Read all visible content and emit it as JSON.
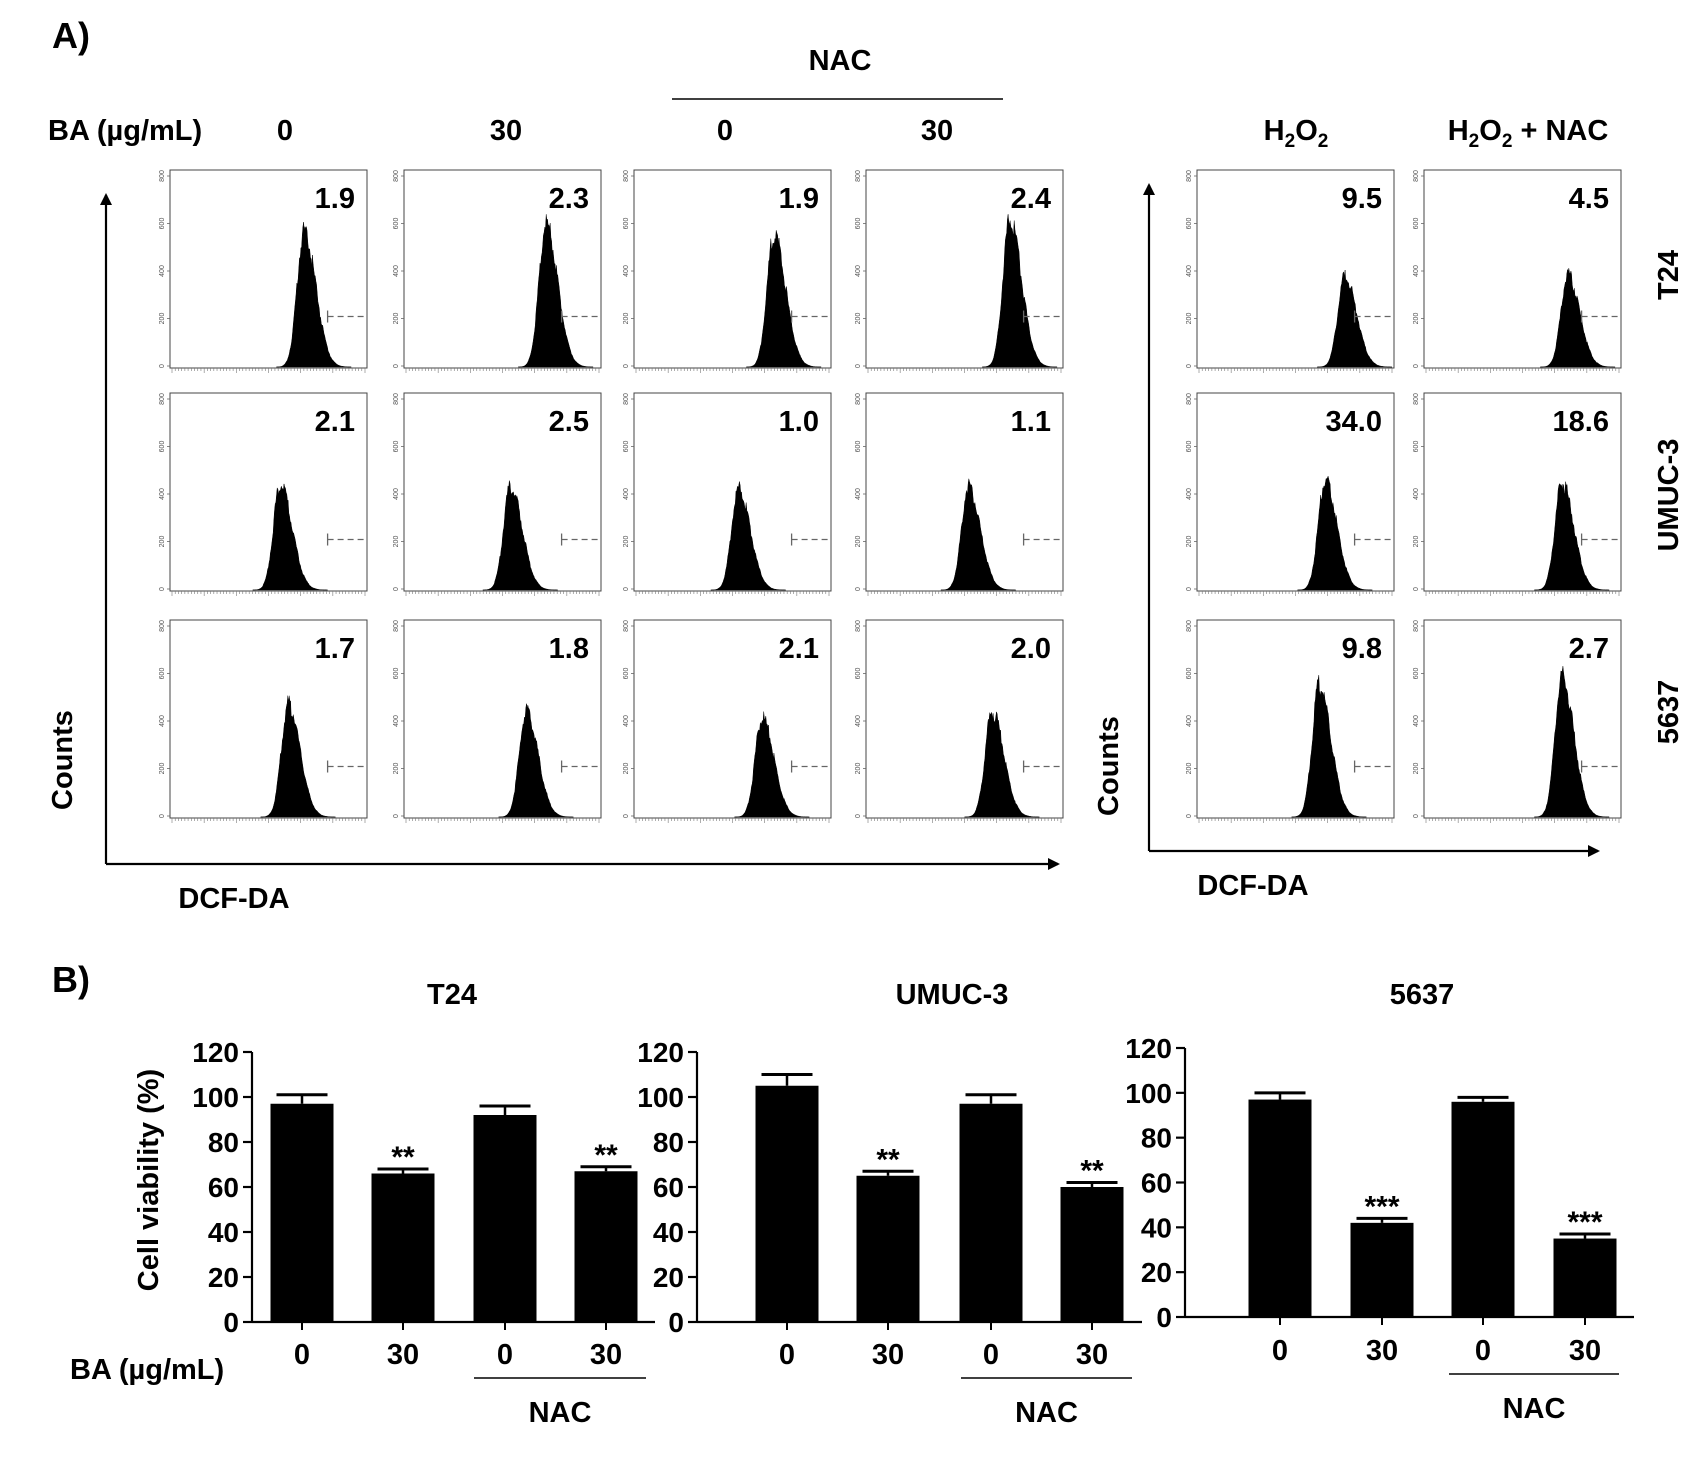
{
  "panel_a": {
    "label": "A)",
    "ba_label": "BA (µg/mL)",
    "nac_label": "NAC",
    "col_labels": [
      "0",
      "30",
      "0",
      "30"
    ],
    "h2o2_labels": [
      {
        "text": "H",
        "sub": "2",
        "text2": "O",
        "sub2": "2",
        "suffix": ""
      },
      {
        "text": "H",
        "sub": "2",
        "text2": "O",
        "sub2": "2",
        "suffix": " + NAC"
      }
    ],
    "row_labels": [
      "T24",
      "UMUC-3",
      "5637"
    ],
    "y_label": "Counts",
    "x_label": "DCF-DA",
    "y_ticks": [
      "0",
      "200",
      "400",
      "600",
      "800"
    ],
    "values_left": [
      [
        "1.9",
        "2.3",
        "1.9",
        "2.4"
      ],
      [
        "2.1",
        "2.5",
        "1.0",
        "1.1"
      ],
      [
        "1.7",
        "1.8",
        "2.1",
        "2.0"
      ]
    ],
    "values_right": [
      [
        "9.5",
        "4.5"
      ],
      [
        "34.0",
        "18.6"
      ],
      [
        "9.8",
        "2.7"
      ]
    ]
  },
  "panel_b": {
    "label": "B)",
    "ba_label": "BA (µg/mL)",
    "y_label": "Cell viability (%)",
    "nac_label": "NAC"
  },
  "chart_data": [
    {
      "type": "bar",
      "title": "T24",
      "categories": [
        "0",
        "30",
        "0",
        "30"
      ],
      "values": [
        97,
        66,
        92,
        67
      ],
      "errors": [
        4,
        2,
        4,
        2
      ],
      "significance": [
        "",
        "**",
        "",
        "**"
      ],
      "ylabel": "Cell viability (%)",
      "xlabel": "BA (µg/mL)",
      "ylim": [
        0,
        120
      ],
      "yticks": [
        0,
        20,
        40,
        60,
        80,
        100,
        120
      ],
      "group_label": "NAC"
    },
    {
      "type": "bar",
      "title": "UMUC-3",
      "categories": [
        "0",
        "30",
        "0",
        "30"
      ],
      "values": [
        105,
        65,
        97,
        60
      ],
      "errors": [
        5,
        2,
        4,
        2
      ],
      "significance": [
        "",
        "**",
        "",
        "**"
      ],
      "ylim": [
        0,
        120
      ],
      "yticks": [
        0,
        20,
        40,
        60,
        80,
        100,
        120
      ],
      "group_label": "NAC"
    },
    {
      "type": "bar",
      "title": "5637",
      "categories": [
        "0",
        "30",
        "0",
        "30"
      ],
      "values": [
        97,
        42,
        96,
        35
      ],
      "errors": [
        3,
        2,
        2,
        2
      ],
      "significance": [
        "",
        "***",
        "",
        "***"
      ],
      "ylim": [
        0,
        120
      ],
      "yticks": [
        0,
        20,
        40,
        60,
        80,
        100,
        120
      ],
      "group_label": "NAC"
    }
  ]
}
